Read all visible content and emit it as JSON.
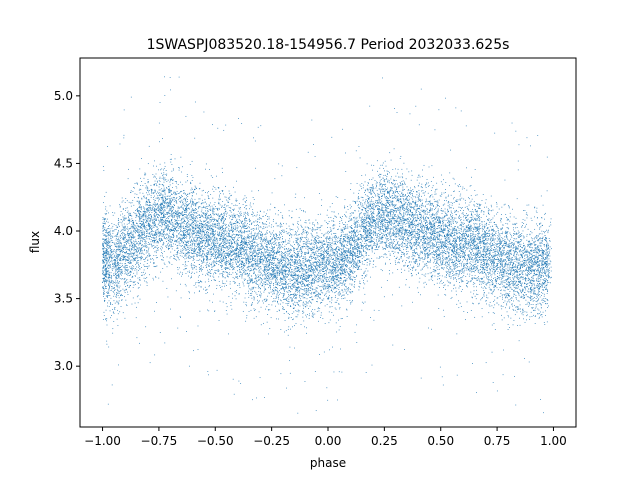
{
  "chart_data": {
    "type": "scatter",
    "title": "1SWASPJ083520.18-154956.7 Period 2032033.625s",
    "xlabel": "phase",
    "ylabel": "flux",
    "xlim": [
      -1.1,
      1.1
    ],
    "ylim": [
      2.55,
      5.28
    ],
    "xticks": [
      -1.0,
      -0.75,
      -0.5,
      -0.25,
      0.0,
      0.25,
      0.5,
      0.75,
      1.0
    ],
    "xtick_labels": [
      "−1.00",
      "−0.75",
      "−0.50",
      "−0.25",
      "0.00",
      "0.25",
      "0.50",
      "0.75",
      "1.00"
    ],
    "yticks": [
      3.0,
      3.5,
      4.0,
      4.5,
      5.0
    ],
    "ytick_labels": [
      "3.0",
      "3.5",
      "4.0",
      "4.5",
      "5.0"
    ],
    "grid": false,
    "legend": "none",
    "marker_color": "#1f77b4",
    "series": [
      {
        "profile_phase": [
          -1.0,
          -0.95,
          -0.9,
          -0.85,
          -0.8,
          -0.75,
          -0.7,
          -0.65,
          -0.6,
          -0.55,
          -0.5,
          -0.45,
          -0.4,
          -0.35,
          -0.3,
          -0.25,
          -0.2,
          -0.15,
          -0.1,
          -0.05,
          0.0,
          0.05,
          0.1,
          0.15,
          0.2,
          0.25,
          0.3,
          0.35,
          0.4,
          0.45,
          0.5,
          0.55,
          0.6,
          0.65,
          0.7,
          0.75,
          0.8,
          0.85,
          0.9,
          0.95,
          1.0
        ],
        "profile_flux": [
          3.8,
          3.75,
          3.85,
          3.95,
          4.05,
          4.12,
          4.1,
          4.05,
          4.0,
          3.95,
          3.92,
          3.9,
          3.88,
          3.85,
          3.82,
          3.75,
          3.72,
          3.7,
          3.72,
          3.75,
          3.78,
          3.75,
          3.85,
          3.98,
          4.1,
          4.12,
          4.1,
          4.05,
          4.02,
          3.98,
          3.95,
          3.92,
          3.9,
          3.88,
          3.85,
          3.8,
          3.75,
          3.72,
          3.72,
          3.75,
          3.78
        ],
        "scatter_sigma": 0.17,
        "n_points": 16000
      }
    ]
  }
}
